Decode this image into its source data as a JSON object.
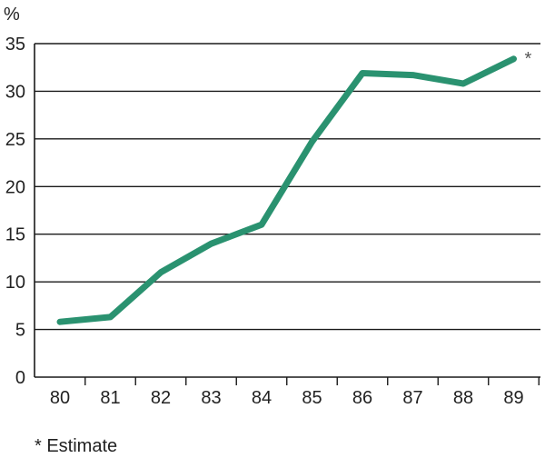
{
  "chart_data": {
    "type": "line",
    "title": "",
    "xlabel": "",
    "ylabel": "%",
    "categories": [
      "80",
      "81",
      "82",
      "83",
      "84",
      "85",
      "86",
      "87",
      "88",
      "89"
    ],
    "series": [
      {
        "values": [
          5.8,
          6.3,
          11.0,
          14.0,
          16.0,
          24.7,
          31.9,
          31.7,
          30.8,
          33.4
        ],
        "color": "#2a9270"
      }
    ],
    "ylim": [
      0,
      35
    ],
    "yticks": [
      0,
      5,
      10,
      15,
      20,
      25,
      30,
      35
    ],
    "grid": true,
    "annotations": [
      {
        "text": "*",
        "category": "89"
      }
    ],
    "footnote": "* Estimate"
  }
}
